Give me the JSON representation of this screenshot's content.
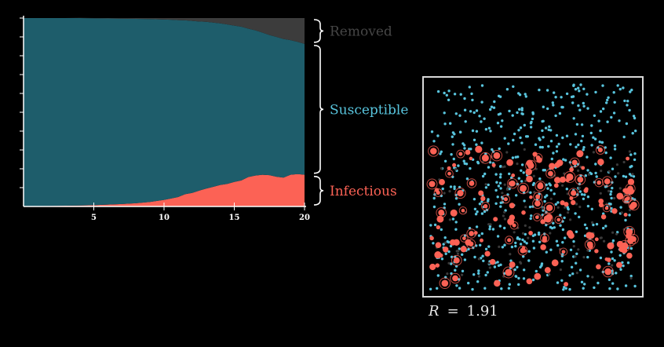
{
  "chart_data": {
    "type": "area",
    "stacked": true,
    "x": [
      0,
      1,
      2,
      3,
      4,
      5,
      6,
      7,
      8,
      9,
      10,
      10.5,
      11,
      11.5,
      12,
      12.5,
      13,
      13.5,
      14,
      14.5,
      15,
      15.5,
      16,
      16.5,
      17,
      17.5,
      18,
      18.5,
      19,
      19.5,
      20
    ],
    "series": [
      {
        "name": "Infectious",
        "color": "#fc6255",
        "values": [
          0.1,
          0.2,
          0.3,
          0.4,
          0.5,
          0.7,
          1.0,
          1.3,
          1.7,
          2.4,
          3.5,
          4.2,
          5.0,
          6.5,
          7.2,
          8.4,
          9.5,
          10.4,
          11.4,
          12.0,
          13.0,
          13.8,
          15.6,
          16.4,
          16.8,
          16.6,
          15.8,
          15.3,
          16.8,
          17.2,
          16.8
        ]
      },
      {
        "name": "Susceptible",
        "color": "#1e5d6b",
        "values": [
          99.9,
          99.8,
          99.7,
          99.6,
          99.5,
          99.2,
          98.8,
          98.4,
          97.9,
          97.1,
          95.7,
          94.9,
          93.9,
          92.3,
          91.3,
          89.8,
          88.5,
          87.2,
          85.8,
          84.6,
          83.0,
          81.6,
          78.8,
          77.1,
          75.5,
          74.4,
          74.2,
          73.6,
          71.5,
          70.2,
          69.5
        ]
      },
      {
        "name": "Removed",
        "color": "#3c3c3c",
        "values": [
          0,
          0,
          0,
          0,
          0.1,
          0.1,
          0.2,
          0.3,
          0.4,
          0.5,
          0.8,
          0.9,
          1.1,
          1.2,
          1.5,
          1.8,
          2.0,
          2.4,
          2.8,
          3.4,
          4.0,
          4.6,
          5.6,
          6.5,
          7.7,
          9.0,
          10.0,
          11.1,
          11.7,
          12.6,
          13.7
        ]
      }
    ],
    "xticks": [
      5,
      10,
      15,
      20
    ],
    "xlim": [
      0,
      20
    ],
    "ylim": [
      0,
      100
    ],
    "ytick_count": 10,
    "legend": [
      {
        "label": "Removed",
        "color": "#464646"
      },
      {
        "label": "Susceptible",
        "color": "#58c4dd"
      },
      {
        "label": "Infectious",
        "color": "#fc6255"
      }
    ],
    "legend_position": "right, with braces"
  },
  "simulation": {
    "susceptible_color": "#58c4dd",
    "infectious_color": "#fc6255",
    "removed_color": "#3a3a3a",
    "population": [
      {
        "state": "susceptible",
        "count": 620
      },
      {
        "state": "infectious",
        "count": 160
      },
      {
        "state": "removed",
        "count": 120
      }
    ]
  },
  "readout": {
    "symbol": "R",
    "equals": "=",
    "value": "1.91"
  }
}
